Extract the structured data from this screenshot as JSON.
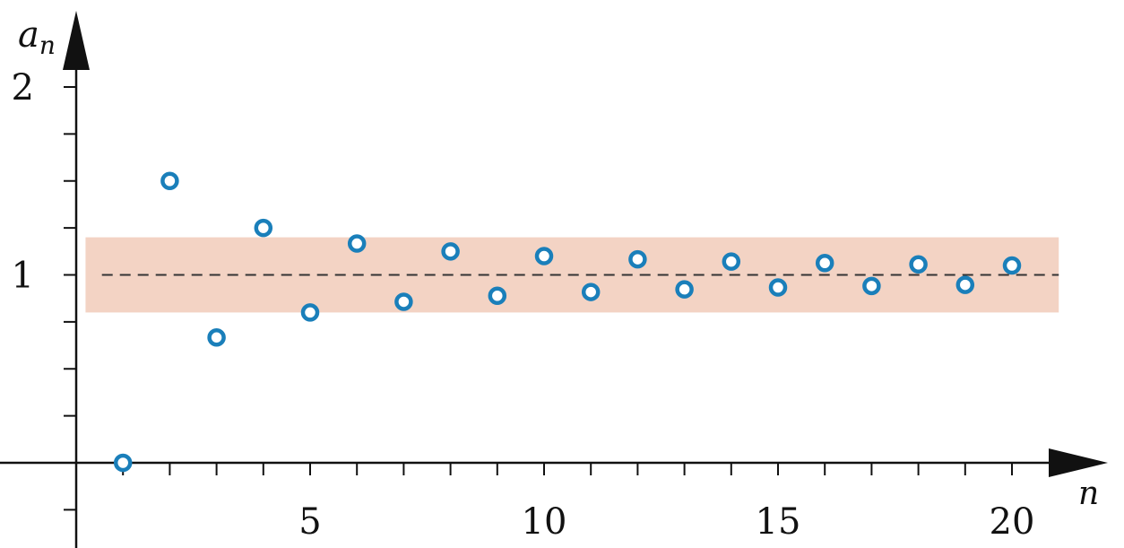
{
  "chart_data": {
    "type": "scatter",
    "title": "",
    "xlabel": "n",
    "ylabel": "a",
    "ylabel_sub": "n",
    "xlim": [
      -1.6,
      21.6
    ],
    "ylim": [
      -0.45,
      2.45
    ],
    "x_ticks": [
      1,
      2,
      3,
      4,
      5,
      6,
      7,
      8,
      9,
      10,
      11,
      12,
      13,
      14,
      15,
      16,
      17,
      18,
      19,
      20
    ],
    "x_tick_labels": [
      {
        "value": 5,
        "text": "5"
      },
      {
        "value": 10,
        "text": "10"
      },
      {
        "value": 15,
        "text": "15"
      },
      {
        "value": 20,
        "text": "20"
      }
    ],
    "y_ticks": [
      -0.25,
      0.25,
      0.5,
      0.75,
      1,
      1.25,
      1.5,
      1.75,
      2
    ],
    "y_tick_labels": [
      {
        "value": 1,
        "text": "1"
      },
      {
        "value": 2,
        "text": "2"
      }
    ],
    "band": {
      "y_from": 0.8,
      "y_to": 1.2,
      "x_from": 0.2,
      "x_to": 21,
      "color": "#f3d3c4"
    },
    "reference_line": {
      "y": 1,
      "style": "dashed",
      "color": "#333333"
    },
    "point_color": "#1a7fba",
    "x": [
      1,
      2,
      3,
      4,
      5,
      6,
      7,
      8,
      9,
      10,
      11,
      12,
      13,
      14,
      15,
      16,
      17,
      18,
      19,
      20
    ],
    "y": [
      0,
      1.5,
      0.667,
      1.25,
      0.8,
      1.167,
      0.857,
      1.125,
      0.889,
      1.1,
      0.909,
      1.083,
      0.923,
      1.071,
      0.933,
      1.063,
      0.941,
      1.056,
      0.947,
      1.05
    ]
  }
}
